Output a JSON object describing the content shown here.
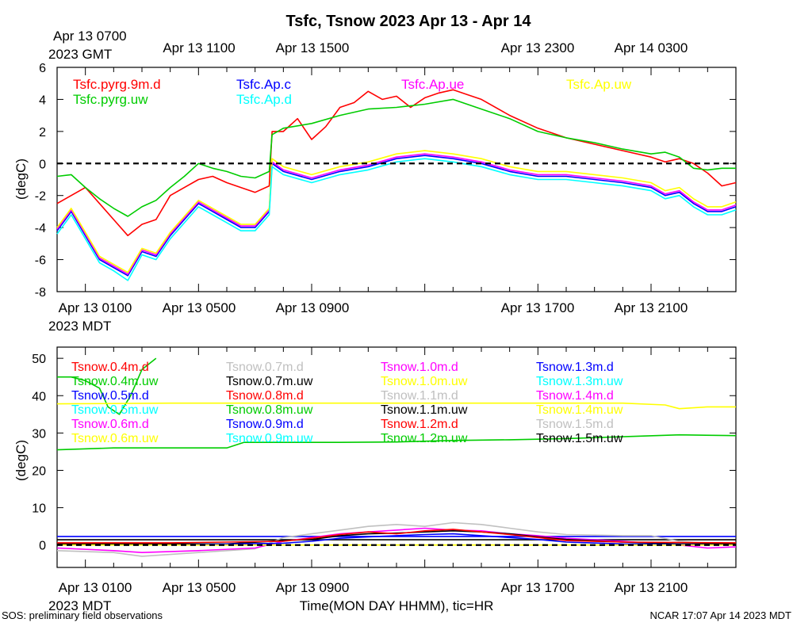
{
  "title": "Tsfc, Tsnow 2023 Apr 13 - Apr 14",
  "top_axis_gmt": {
    "first_label_line1": "Apr 13 0700",
    "first_label_line2": "2023 GMT",
    "labels": [
      "Apr 13 1100",
      "Apr 13 1500",
      "Apr 13 2300",
      "Apr 14 0300"
    ]
  },
  "mdt_axis": {
    "labels": [
      "Apr 13 0100",
      "Apr 13 0500",
      "Apr 13 0900",
      "Apr 13 1700",
      "Apr 13 2100"
    ],
    "year_label": "2023 MDT"
  },
  "xlabel": "Time(MON DAY HHMM), tic=HR",
  "footer_left": "SOS: preliminary field observations",
  "footer_right": "NCAR 17:07 Apr 14 2023 MDT",
  "colors": {
    "red": "#ff0000",
    "green": "#00cc00",
    "blue": "#0000ff",
    "magenta": "#ff00ff",
    "cyan": "#00ffff",
    "yellow": "#ffff00",
    "gray": "#c0c0c0",
    "black": "#000000"
  },
  "chart_data": [
    {
      "type": "line",
      "x_unit": "hours since Apr 13 00:00 MDT",
      "xlim": [
        0,
        24
      ],
      "ylabel": "(degC)",
      "ylim": [
        -8,
        6
      ],
      "yticks": [
        -8,
        -6,
        -4,
        -2,
        0,
        2,
        4,
        6
      ],
      "reference_line": 0,
      "legend": [
        {
          "name": "Tsfc.pyrg.9m.d",
          "color": "red"
        },
        {
          "name": "Tsfc.Ap.c",
          "color": "blue"
        },
        {
          "name": "Tsfc.Ap.ue",
          "color": "magenta"
        },
        {
          "name": "Tsfc.Ap.uw",
          "color": "yellow"
        },
        {
          "name": "Tsfc.pyrg.uw",
          "color": "green"
        },
        {
          "name": "Tsfc.Ap.d",
          "color": "cyan"
        }
      ],
      "series": [
        {
          "name": "Tsfc.pyrg.9m.d",
          "color": "red",
          "x": [
            0,
            0.5,
            1,
            1.5,
            2,
            2.5,
            3,
            3.5,
            4,
            4.5,
            5,
            5.5,
            6,
            6.5,
            7,
            7.5,
            7.6,
            8,
            8.5,
            9,
            9.5,
            10,
            10.5,
            11,
            11.5,
            12,
            12.5,
            13,
            13.5,
            14,
            14.5,
            15,
            16,
            17,
            18,
            19,
            20,
            21,
            21.5,
            22,
            22.5,
            23,
            23.5,
            24
          ],
          "y": [
            -2.5,
            -2.0,
            -1.5,
            -2.5,
            -3.5,
            -4.5,
            -3.8,
            -3.5,
            -2.0,
            -1.5,
            -1.0,
            -0.8,
            -1.2,
            -1.5,
            -1.8,
            -1.4,
            2.0,
            2.0,
            2.8,
            1.5,
            2.3,
            3.5,
            3.8,
            4.5,
            4.0,
            4.2,
            3.5,
            4.1,
            4.4,
            4.6,
            4.3,
            4.0,
            3.0,
            2.2,
            1.6,
            1.2,
            0.8,
            0.4,
            0.1,
            0.3,
            0.0,
            -0.6,
            -1.4,
            -1.2
          ]
        },
        {
          "name": "Tsfc.pyrg.uw",
          "color": "green",
          "x": [
            0,
            0.5,
            1,
            1.5,
            2,
            2.5,
            3,
            3.5,
            4,
            4.5,
            5,
            5.5,
            6,
            6.5,
            7,
            7.5,
            7.6,
            8,
            9,
            10,
            11,
            12,
            13,
            14,
            15,
            16,
            17,
            18,
            19,
            20,
            21,
            21.5,
            22,
            22.5,
            23,
            23.5,
            24
          ],
          "y": [
            -0.8,
            -0.7,
            -1.5,
            -2.2,
            -2.8,
            -3.3,
            -2.7,
            -2.3,
            -1.5,
            -0.8,
            0.0,
            -0.3,
            -0.5,
            -0.8,
            -0.9,
            -0.5,
            1.8,
            2.2,
            2.5,
            3.0,
            3.4,
            3.5,
            3.7,
            4.0,
            3.4,
            2.8,
            2.0,
            1.6,
            1.3,
            0.9,
            0.6,
            0.7,
            0.4,
            -0.3,
            -0.4,
            -0.3,
            -0.3
          ]
        },
        {
          "name": "Tsfc.Ap.c",
          "color": "blue",
          "x": [
            0,
            0.5,
            1,
            1.5,
            2,
            2.5,
            3,
            3.5,
            4,
            4.5,
            5,
            5.5,
            6,
            6.5,
            7,
            7.5,
            7.6,
            8,
            9,
            10,
            11,
            12,
            13,
            14,
            15,
            16,
            17,
            18,
            19,
            20,
            21,
            21.5,
            22,
            22.5,
            23,
            23.5,
            24
          ],
          "y": [
            -4.2,
            -3.0,
            -4.5,
            -6.0,
            -6.5,
            -7.0,
            -5.5,
            -5.8,
            -4.5,
            -3.5,
            -2.5,
            -3.0,
            -3.5,
            -4.0,
            -4.0,
            -3.0,
            0.0,
            -0.5,
            -1.0,
            -0.5,
            -0.2,
            0.3,
            0.5,
            0.3,
            0.0,
            -0.5,
            -0.8,
            -0.8,
            -1.0,
            -1.2,
            -1.5,
            -2.0,
            -1.8,
            -2.5,
            -3.0,
            -3.0,
            -2.7
          ]
        },
        {
          "name": "Tsfc.Ap.ue",
          "color": "magenta",
          "x": [
            0,
            0.5,
            1,
            1.5,
            2,
            2.5,
            3,
            3.5,
            4,
            4.5,
            5,
            5.5,
            6,
            6.5,
            7,
            7.5,
            7.6,
            8,
            9,
            10,
            11,
            12,
            13,
            14,
            15,
            16,
            17,
            18,
            19,
            20,
            21,
            21.5,
            22,
            22.5,
            23,
            23.5,
            24
          ],
          "y": [
            -4.1,
            -2.9,
            -4.4,
            -5.9,
            -6.4,
            -6.9,
            -5.4,
            -5.7,
            -4.4,
            -3.4,
            -2.4,
            -2.9,
            -3.4,
            -3.9,
            -3.9,
            -2.9,
            0.1,
            -0.4,
            -0.9,
            -0.4,
            -0.1,
            0.4,
            0.6,
            0.4,
            0.1,
            -0.4,
            -0.7,
            -0.7,
            -0.9,
            -1.1,
            -1.4,
            -1.9,
            -1.7,
            -2.4,
            -2.9,
            -2.9,
            -2.6
          ]
        },
        {
          "name": "Tsfc.Ap.uw",
          "color": "yellow",
          "x": [
            0,
            0.5,
            1,
            1.5,
            2,
            2.5,
            3,
            3.5,
            4,
            4.5,
            5,
            5.5,
            6,
            6.5,
            7,
            7.5,
            7.6,
            8,
            9,
            10,
            11,
            12,
            13,
            14,
            15,
            16,
            17,
            18,
            19,
            20,
            21,
            21.5,
            22,
            22.5,
            23,
            23.5,
            24
          ],
          "y": [
            -4.0,
            -2.8,
            -4.3,
            -5.8,
            -6.3,
            -6.8,
            -5.3,
            -5.6,
            -4.3,
            -3.3,
            -2.3,
            -2.8,
            -3.3,
            -3.8,
            -3.8,
            -2.8,
            0.3,
            -0.2,
            -0.7,
            -0.2,
            0.1,
            0.6,
            0.8,
            0.6,
            0.3,
            -0.2,
            -0.5,
            -0.5,
            -0.7,
            -0.9,
            -1.2,
            -1.7,
            -1.5,
            -2.2,
            -2.7,
            -2.7,
            -2.4
          ]
        },
        {
          "name": "Tsfc.Ap.d",
          "color": "cyan",
          "x": [
            0,
            0.5,
            1,
            1.5,
            2,
            2.5,
            3,
            3.5,
            4,
            4.5,
            5,
            5.5,
            6,
            6.5,
            7,
            7.5,
            7.6,
            8,
            9,
            10,
            11,
            12,
            13,
            14,
            15,
            16,
            17,
            18,
            19,
            20,
            21,
            21.5,
            22,
            22.5,
            23,
            23.5,
            24
          ],
          "y": [
            -4.4,
            -3.2,
            -4.7,
            -6.2,
            -6.7,
            -7.3,
            -5.7,
            -6.0,
            -4.7,
            -3.7,
            -2.7,
            -3.2,
            -3.7,
            -4.2,
            -4.2,
            -3.2,
            -0.2,
            -0.7,
            -1.2,
            -0.7,
            -0.4,
            0.1,
            0.3,
            0.1,
            -0.2,
            -0.7,
            -1.0,
            -1.0,
            -1.2,
            -1.4,
            -1.7,
            -2.2,
            -2.0,
            -2.7,
            -3.2,
            -3.2,
            -2.9
          ]
        }
      ]
    },
    {
      "type": "line",
      "x_unit": "hours since Apr 13 00:00 MDT",
      "xlim": [
        0,
        24
      ],
      "ylabel": "(degC)",
      "ylim": [
        -6,
        53
      ],
      "yticks": [
        0,
        10,
        20,
        30,
        40,
        50
      ],
      "reference_line": 0,
      "legend": [
        {
          "name": "Tsnow.0.4m.d",
          "color": "red"
        },
        {
          "name": "Tsnow.0.7m.d",
          "color": "gray"
        },
        {
          "name": "Tsnow.1.0m.d",
          "color": "magenta"
        },
        {
          "name": "Tsnow.1.3m.d",
          "color": "blue"
        },
        {
          "name": "Tsnow.0.4m.uw",
          "color": "green"
        },
        {
          "name": "Tsnow.0.7m.uw",
          "color": "black"
        },
        {
          "name": "Tsnow.1.0m.uw",
          "color": "yellow"
        },
        {
          "name": "Tsnow.1.3m.uw",
          "color": "cyan"
        },
        {
          "name": "Tsnow.0.5m.d",
          "color": "blue"
        },
        {
          "name": "Tsnow.0.8m.d",
          "color": "red"
        },
        {
          "name": "Tsnow.1.1m.d",
          "color": "gray"
        },
        {
          "name": "Tsnow.1.4m.d",
          "color": "magenta"
        },
        {
          "name": "Tsnow.0.5m.uw",
          "color": "cyan"
        },
        {
          "name": "Tsnow.0.8m.uw",
          "color": "green"
        },
        {
          "name": "Tsnow.1.1m.uw",
          "color": "black"
        },
        {
          "name": "Tsnow.1.4m.uw",
          "color": "yellow"
        },
        {
          "name": "Tsnow.0.6m.d",
          "color": "magenta"
        },
        {
          "name": "Tsnow.0.9m.d",
          "color": "blue"
        },
        {
          "name": "Tsnow.1.2m.d",
          "color": "red"
        },
        {
          "name": "Tsnow.1.5m.d",
          "color": "gray"
        },
        {
          "name": "Tsnow.0.6m.uw",
          "color": "yellow"
        },
        {
          "name": "Tsnow.0.9m.uw",
          "color": "cyan"
        },
        {
          "name": "Tsnow.1.2m.uw",
          "color": "green"
        },
        {
          "name": "Tsnow.1.5m.uw",
          "color": "black"
        }
      ],
      "series": [
        {
          "name": "Tsnow.0.4m.uw",
          "color": "green",
          "x": [
            0,
            0.5,
            1,
            1.5,
            1.8,
            2.2,
            2.6,
            3.0,
            3.5
          ],
          "y": [
            45,
            45,
            44,
            42,
            37,
            35,
            40,
            47,
            50
          ]
        },
        {
          "name": "Tsnow.1.4m.uw",
          "color": "yellow",
          "x": [
            0,
            4,
            8,
            12,
            16,
            20,
            21.5,
            22,
            23,
            24
          ],
          "y": [
            37.8,
            38,
            38,
            38,
            38,
            38,
            37.5,
            36.5,
            37,
            37
          ]
        },
        {
          "name": "Tsnow.1.2m.uw",
          "color": "green",
          "x": [
            0,
            2,
            4,
            6,
            6.6,
            8,
            10,
            12,
            14,
            16,
            18,
            20,
            22,
            24
          ],
          "y": [
            25.5,
            26,
            26,
            26,
            27.5,
            27.5,
            27.5,
            27.6,
            28,
            28.2,
            28.5,
            29,
            29.5,
            29.3
          ]
        },
        {
          "name": "Tsnow.1.3m.d",
          "color": "blue",
          "x": [
            0,
            24
          ],
          "y": [
            2.3,
            2.3
          ]
        },
        {
          "name": "Tsnow.1.5m.uw",
          "color": "black",
          "x": [
            0,
            24
          ],
          "y": [
            1.4,
            1.4
          ]
        },
        {
          "name": "Tsnow.0.7m.d",
          "color": "gray",
          "x": [
            0,
            2,
            3,
            5,
            7,
            8,
            9,
            10,
            11,
            12,
            13,
            14,
            15,
            16,
            17,
            18,
            20,
            21,
            22,
            23,
            24
          ],
          "y": [
            -1.5,
            -2.0,
            -3.0,
            -2.0,
            -1.0,
            2.0,
            3.0,
            4.0,
            5.0,
            5.5,
            5.0,
            6.0,
            5.5,
            4.5,
            3.5,
            2.8,
            2.5,
            2.5,
            1.0,
            0.5,
            0.5
          ]
        },
        {
          "name": "Tsnow.0.6m.d",
          "color": "magenta",
          "x": [
            0,
            2,
            3,
            5,
            7,
            8,
            9,
            10,
            11,
            12,
            13,
            14,
            15,
            16,
            17,
            18,
            20,
            21,
            22,
            23,
            24
          ],
          "y": [
            -0.8,
            -1.5,
            -2.0,
            -1.5,
            -0.8,
            1.0,
            2.0,
            3.0,
            3.5,
            4.0,
            4.5,
            4.0,
            3.8,
            3.0,
            2.5,
            1.8,
            1.0,
            0.5,
            0.0,
            -0.8,
            -0.5
          ]
        },
        {
          "name": "Tsnow.1.1m.uw",
          "color": "black",
          "x": [
            0,
            2,
            4,
            6,
            8,
            9,
            10,
            11,
            12,
            13,
            14,
            15,
            16,
            17,
            18,
            20,
            22,
            24
          ],
          "y": [
            0.3,
            0.3,
            0.3,
            0.3,
            1.2,
            1.5,
            2.5,
            3.0,
            3.2,
            3.5,
            3.8,
            3.5,
            3.0,
            2.2,
            1.5,
            0.8,
            0.3,
            0.3
          ]
        },
        {
          "name": "Tsnow.0.9m.d",
          "color": "blue",
          "x": [
            0,
            4,
            8,
            9,
            10,
            11,
            12,
            13,
            14,
            15,
            16,
            17,
            18,
            20,
            24
          ],
          "y": [
            0.0,
            0.0,
            0.5,
            1.0,
            1.8,
            2.2,
            2.5,
            2.8,
            3.0,
            2.5,
            2.0,
            1.5,
            0.8,
            0.3,
            0.0
          ]
        },
        {
          "name": "Tsnow.0.8m.d",
          "color": "red",
          "x": [
            0,
            4,
            8,
            9,
            10,
            11,
            12,
            13,
            14,
            15,
            16,
            17,
            18,
            20,
            24
          ],
          "y": [
            0.6,
            0.6,
            1.0,
            1.8,
            2.8,
            3.5,
            3.0,
            3.8,
            4.2,
            3.5,
            2.8,
            2.0,
            1.2,
            0.8,
            0.6
          ]
        },
        {
          "name": "Tsnow.0.6m.uw",
          "color": "yellow",
          "x": [
            0,
            24
          ],
          "y": [
            0.0,
            0.0
          ]
        }
      ]
    }
  ]
}
